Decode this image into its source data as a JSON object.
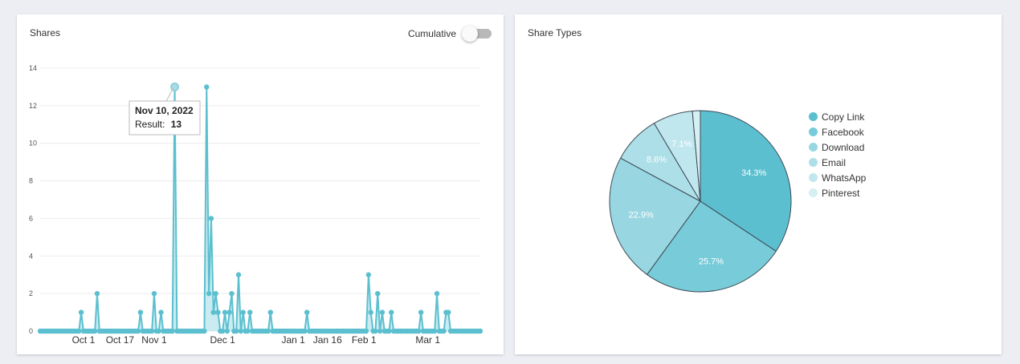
{
  "shares_panel": {
    "title": "Shares",
    "cumulative_label": "Cumulative",
    "cumulative_on": false
  },
  "types_panel": {
    "title": "Share Types"
  },
  "tooltip": {
    "date": "Nov 10, 2022",
    "result_label": "Result:",
    "result_value": "13"
  },
  "colors": {
    "line": "#5bbfcf",
    "fill": "#b7e4ec",
    "grid": "#ececec",
    "pie_stroke": "#3d4a55"
  },
  "chart_data": [
    {
      "type": "area",
      "title": "Shares",
      "x_range": [
        "2022-09-12",
        "2023-03-24"
      ],
      "ylim": [
        0,
        14
      ],
      "y_ticks": [
        0,
        2,
        4,
        6,
        8,
        10,
        12,
        14
      ],
      "x_ticks": [
        {
          "date": "2022-10-01",
          "label": "Oct 1"
        },
        {
          "date": "2022-10-17",
          "label": "Oct 17"
        },
        {
          "date": "2022-11-01",
          "label": "Nov 1"
        },
        {
          "date": "2022-12-01",
          "label": "Dec 1"
        },
        {
          "date": "2023-01-01",
          "label": "Jan 1"
        },
        {
          "date": "2023-01-16",
          "label": "Jan 16"
        },
        {
          "date": "2023-02-01",
          "label": "Feb 1"
        },
        {
          "date": "2023-03-01",
          "label": "Mar 1"
        }
      ],
      "grid": true,
      "highlight": {
        "date": "2022-11-10",
        "value": 13
      },
      "points": [
        {
          "x": "2022-09-30",
          "y": 1
        },
        {
          "x": "2022-10-07",
          "y": 2
        },
        {
          "x": "2022-10-26",
          "y": 1
        },
        {
          "x": "2022-11-01",
          "y": 2
        },
        {
          "x": "2022-11-04",
          "y": 1
        },
        {
          "x": "2022-11-10",
          "y": 13
        },
        {
          "x": "2022-11-24",
          "y": 13
        },
        {
          "x": "2022-11-25",
          "y": 2
        },
        {
          "x": "2022-11-26",
          "y": 6
        },
        {
          "x": "2022-11-27",
          "y": 1
        },
        {
          "x": "2022-11-28",
          "y": 2
        },
        {
          "x": "2022-11-29",
          "y": 1
        },
        {
          "x": "2022-12-02",
          "y": 1
        },
        {
          "x": "2022-12-04",
          "y": 1
        },
        {
          "x": "2022-12-05",
          "y": 2
        },
        {
          "x": "2022-12-08",
          "y": 3
        },
        {
          "x": "2022-12-10",
          "y": 1
        },
        {
          "x": "2022-12-13",
          "y": 1
        },
        {
          "x": "2022-12-22",
          "y": 1
        },
        {
          "x": "2023-01-07",
          "y": 1
        },
        {
          "x": "2023-02-03",
          "y": 3
        },
        {
          "x": "2023-02-04",
          "y": 1
        },
        {
          "x": "2023-02-07",
          "y": 2
        },
        {
          "x": "2023-02-09",
          "y": 1
        },
        {
          "x": "2023-02-13",
          "y": 1
        },
        {
          "x": "2023-02-26",
          "y": 1
        },
        {
          "x": "2023-03-05",
          "y": 2
        },
        {
          "x": "2023-03-09",
          "y": 1
        },
        {
          "x": "2023-03-10",
          "y": 1
        }
      ]
    },
    {
      "type": "pie",
      "title": "Share Types",
      "legend_position": "right",
      "slices": [
        {
          "name": "Copy Link",
          "value": 34.3,
          "label": "34.3%",
          "color": "#5bbfcf"
        },
        {
          "name": "Facebook",
          "value": 25.7,
          "label": "25.7%",
          "color": "#78cbd8"
        },
        {
          "name": "Download",
          "value": 22.9,
          "label": "22.9%",
          "color": "#98d7e2"
        },
        {
          "name": "Email",
          "value": 8.6,
          "label": "8.6%",
          "color": "#addfe8"
        },
        {
          "name": "WhatsApp",
          "value": 7.1,
          "label": "7.1%",
          "color": "#c1e7ee"
        },
        {
          "name": "Pinterest",
          "value": 1.4,
          "label": "",
          "color": "#d5eff3"
        }
      ]
    }
  ]
}
